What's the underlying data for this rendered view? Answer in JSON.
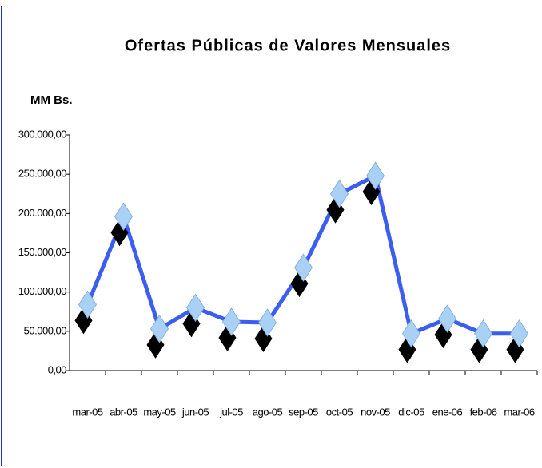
{
  "chart_data": {
    "type": "line",
    "title": "Ofertas Públicas de Valores Mensuales",
    "y_label": "MM Bs.",
    "categories": [
      "mar-05",
      "abr-05",
      "may-05",
      "jun-05",
      "jul-05",
      "ago-05",
      "sep-05",
      "oct-05",
      "nov-05",
      "dic-05",
      "ene-06",
      "feb-06",
      "mar-06"
    ],
    "series": [
      {
        "name": "Ofertas Públicas",
        "color": "#3b5ef0",
        "marker_color": "#a9d0f5",
        "values": [
          84000,
          196000,
          53000,
          80000,
          62000,
          61000,
          131000,
          225000,
          248000,
          47000,
          66000,
          47000,
          47000
        ]
      }
    ],
    "ylim": [
      0,
      300000
    ],
    "yticks": [
      {
        "value": 0,
        "label": "0,00"
      },
      {
        "value": 50000,
        "label": "50.000,00"
      },
      {
        "value": 100000,
        "label": "100.000,00"
      },
      {
        "value": 150000,
        "label": "150.000,00"
      },
      {
        "value": 200000,
        "label": "200.000,00"
      },
      {
        "value": 250000,
        "label": "250.000,00"
      },
      {
        "value": 300000,
        "label": "300.000,00"
      }
    ],
    "grid": false
  }
}
